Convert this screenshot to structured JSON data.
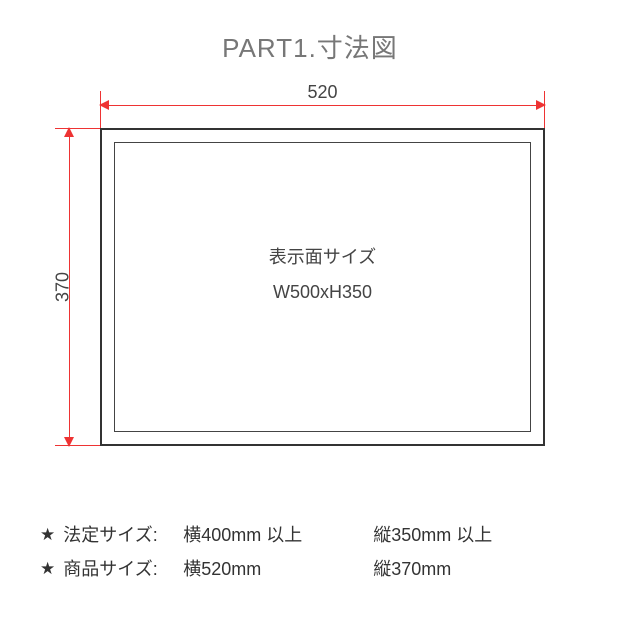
{
  "title": "PART1.寸法図",
  "diagram": {
    "width_label": "520",
    "height_label": "370",
    "display_area_label": "表示面サイズ",
    "display_area_size": "W500xH350",
    "outer_width_mm": 520,
    "outer_height_mm": 370,
    "inner_width_mm": 500,
    "inner_height_mm": 350,
    "dimension_line_color": "#e33",
    "rect_border_color": "#333",
    "inner_border_color": "#444",
    "background_color": "#ffffff"
  },
  "notes": {
    "star": "★",
    "rows": [
      {
        "label": "法定サイズ:",
        "w": "横400mm 以上",
        "h": "縦350mm 以上"
      },
      {
        "label": "商品サイズ:",
        "w": "横520mm",
        "h": "縦370mm"
      }
    ]
  },
  "styling": {
    "title_fontsize": 26,
    "title_color": "#777",
    "body_fontsize": 18,
    "body_color": "#444",
    "notes_color": "#333"
  }
}
